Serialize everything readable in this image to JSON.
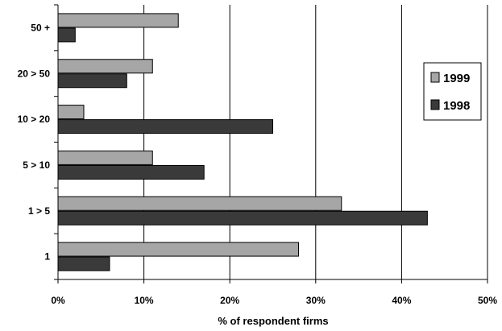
{
  "chart_data": {
    "type": "bar",
    "orientation": "horizontal",
    "categories": [
      "50 +",
      "20 > 50",
      "10 > 20",
      "5 > 10",
      "1 > 5",
      "1"
    ],
    "series": [
      {
        "name": "1999",
        "values": [
          14,
          11,
          3,
          11,
          33,
          28
        ],
        "color": "#a6a6a6"
      },
      {
        "name": "1998",
        "values": [
          2,
          8,
          25,
          17,
          43,
          6
        ],
        "color": "#3a3a3a"
      }
    ],
    "xlabel": "% of respondent firms",
    "ylabel": "",
    "xlim": [
      0,
      50
    ],
    "xticks": [
      "0%",
      "10%",
      "20%",
      "30%",
      "40%",
      "50%"
    ],
    "grid": "vertical",
    "legend": "right"
  }
}
